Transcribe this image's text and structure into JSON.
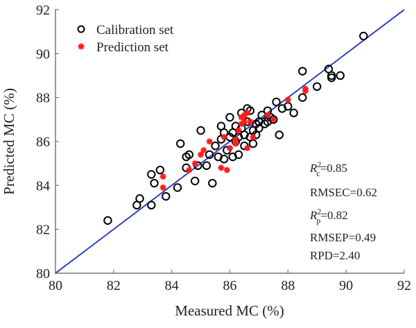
{
  "chart_data": {
    "type": "scatter",
    "title": "",
    "xlabel": "Measured MC (%)",
    "ylabel": "Predicted MC (%)",
    "xlim": [
      80,
      92
    ],
    "ylim": [
      80,
      92
    ],
    "xticks": [
      "80",
      "82",
      "84",
      "86",
      "88",
      "90",
      "92"
    ],
    "yticks": [
      "80",
      "82",
      "84",
      "86",
      "88",
      "90",
      "92"
    ],
    "grid": false,
    "legend_position": "top-left",
    "reference_line": {
      "name": "1:1 line",
      "color": "#1a2fbf",
      "from": [
        80,
        80
      ],
      "to": [
        92,
        92
      ]
    },
    "series": [
      {
        "name": "Calibration set",
        "marker": "circle",
        "color": "#000000",
        "points": [
          [
            81.8,
            82.4
          ],
          [
            82.8,
            83.1
          ],
          [
            82.9,
            83.4
          ],
          [
            83.3,
            83.1
          ],
          [
            83.3,
            84.5
          ],
          [
            83.4,
            84.1
          ],
          [
            83.6,
            84.7
          ],
          [
            83.8,
            83.5
          ],
          [
            84.2,
            83.9
          ],
          [
            84.3,
            85.9
          ],
          [
            84.5,
            85.3
          ],
          [
            84.6,
            85.4
          ],
          [
            84.5,
            84.8
          ],
          [
            84.8,
            84.2
          ],
          [
            84.9,
            84.9
          ],
          [
            85.0,
            86.5
          ],
          [
            85.2,
            84.9
          ],
          [
            85.3,
            85.4
          ],
          [
            85.4,
            84.1
          ],
          [
            85.5,
            85.8
          ],
          [
            85.6,
            85.3
          ],
          [
            85.7,
            86.1
          ],
          [
            85.7,
            86.7
          ],
          [
            85.8,
            86.4
          ],
          [
            85.8,
            85.2
          ],
          [
            85.9,
            85.6
          ],
          [
            86.0,
            86.2
          ],
          [
            86.0,
            87.1
          ],
          [
            86.1,
            86.4
          ],
          [
            86.1,
            85.3
          ],
          [
            86.2,
            86.0
          ],
          [
            86.2,
            86.7
          ],
          [
            86.3,
            85.4
          ],
          [
            86.3,
            86.2
          ],
          [
            86.4,
            86.6
          ],
          [
            86.4,
            87.3
          ],
          [
            86.5,
            85.8
          ],
          [
            86.5,
            86.3
          ],
          [
            86.6,
            86.9
          ],
          [
            86.6,
            87.5
          ],
          [
            86.7,
            86.2
          ],
          [
            86.7,
            87.4
          ],
          [
            86.8,
            86.5
          ],
          [
            86.8,
            85.9
          ],
          [
            86.9,
            86.8
          ],
          [
            86.9,
            86.3
          ],
          [
            87.0,
            86.9
          ],
          [
            87.0,
            86.6
          ],
          [
            87.1,
            87.2
          ],
          [
            87.2,
            86.8
          ],
          [
            87.3,
            87.4
          ],
          [
            87.3,
            86.9
          ],
          [
            87.4,
            87.1
          ],
          [
            87.5,
            87.0
          ],
          [
            87.6,
            87.8
          ],
          [
            87.7,
            86.3
          ],
          [
            87.8,
            87.5
          ],
          [
            88.0,
            87.6
          ],
          [
            88.2,
            87.3
          ],
          [
            88.5,
            88.0
          ],
          [
            88.5,
            89.2
          ],
          [
            89.0,
            88.5
          ],
          [
            89.4,
            89.3
          ],
          [
            89.5,
            89.0
          ],
          [
            89.5,
            88.9
          ],
          [
            89.8,
            89.0
          ],
          [
            90.6,
            90.8
          ]
        ]
      },
      {
        "name": "Prediction set",
        "marker": "asterisk",
        "color": "#ff1a1a",
        "points": [
          [
            83.7,
            84.4
          ],
          [
            83.7,
            83.9
          ],
          [
            84.6,
            84.7
          ],
          [
            84.8,
            85.0
          ],
          [
            85.0,
            85.4
          ],
          [
            85.1,
            85.6
          ],
          [
            85.3,
            86.0
          ],
          [
            85.7,
            84.8
          ],
          [
            85.9,
            84.7
          ],
          [
            85.8,
            86.2
          ],
          [
            86.0,
            85.7
          ],
          [
            86.2,
            86.1
          ],
          [
            86.2,
            85.9
          ],
          [
            86.3,
            86.5
          ],
          [
            86.4,
            86.8
          ],
          [
            86.4,
            87.1
          ],
          [
            86.5,
            86.9
          ],
          [
            86.5,
            87.2
          ],
          [
            86.6,
            87.3
          ],
          [
            86.6,
            85.7
          ],
          [
            86.7,
            86.9
          ],
          [
            86.8,
            86.2
          ],
          [
            87.3,
            87.2
          ],
          [
            87.5,
            87.0
          ],
          [
            88.0,
            87.9
          ],
          [
            88.6,
            88.3
          ],
          [
            88.6,
            88.4
          ]
        ]
      }
    ],
    "annotations": [
      {
        "base": "R",
        "sup": "2",
        "sub": "c",
        "rest": "=0.85"
      },
      {
        "text": "RMSEC=0.62"
      },
      {
        "base": "R",
        "sup": "2",
        "sub": "p",
        "rest": "=0.82"
      },
      {
        "text": "RMSEP=0.49"
      },
      {
        "text": "RPD=2.40"
      }
    ]
  }
}
